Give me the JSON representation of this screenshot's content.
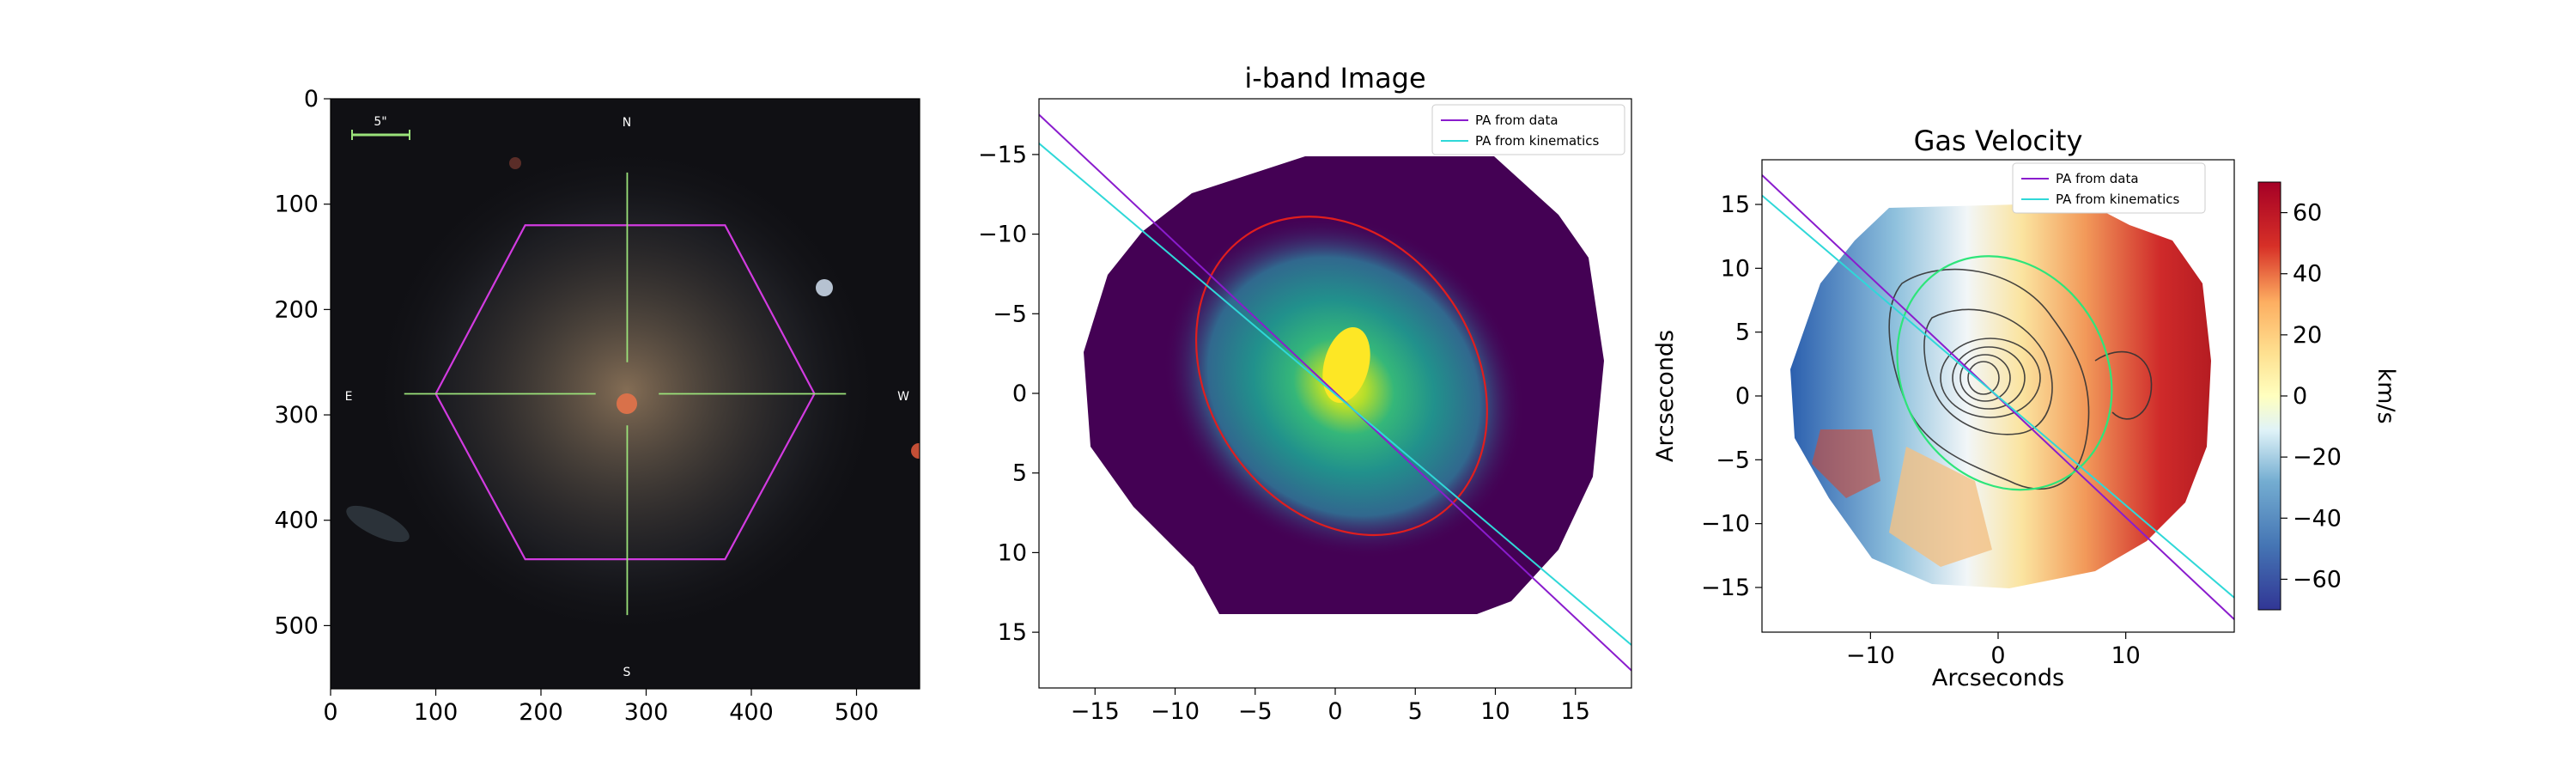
{
  "chart_data": [
    {
      "type": "image",
      "panel": "optical-image",
      "xlim": [
        0,
        560
      ],
      "ylim": [
        0,
        560
      ],
      "y_inverted": true,
      "xticks": [
        0,
        100,
        200,
        300,
        400,
        500
      ],
      "yticks": [
        0,
        100,
        200,
        300,
        400,
        500
      ],
      "scale_bar_label": "5\"",
      "compass": {
        "north": "N",
        "south": "S",
        "east": "E",
        "west": "W"
      },
      "center": [
        282,
        280
      ],
      "hexagon_vertices": [
        [
          185,
          120
        ],
        [
          375,
          120
        ],
        [
          460,
          280
        ],
        [
          375,
          437
        ],
        [
          185,
          437
        ],
        [
          100,
          280
        ]
      ],
      "crosshair": {
        "vertical": [
          [
            282,
            70
          ],
          [
            282,
            490
          ]
        ],
        "horizontal": [
          [
            70,
            280
          ],
          [
            490,
            280
          ]
        ]
      },
      "colors": {
        "background": "#101014",
        "hexagon": "#d23be0",
        "crosshair": "#9be27a",
        "scale_bar": "#9be27a"
      }
    },
    {
      "type": "heatmap",
      "panel": "i-band",
      "title": "i-band Image",
      "xlim": [
        -18.5,
        18.5
      ],
      "ylim": [
        18.5,
        -18.5
      ],
      "xticks": [
        -15,
        -10,
        -5,
        0,
        5,
        10,
        15
      ],
      "yticks": [
        -15,
        -10,
        -5,
        0,
        5,
        10,
        15
      ],
      "peak": [
        0.8,
        -2.2
      ],
      "ellipse": {
        "center": [
          0.4,
          -1.1
        ],
        "semi_major": 10.6,
        "semi_minor": 8.3,
        "angle_deg": 56,
        "color": "#e01e1e"
      },
      "legend": [
        {
          "label": "PA from data",
          "color": "#8a1ccd"
        },
        {
          "label": "PA from kinematics",
          "color": "#2fd8d8"
        }
      ],
      "lines": [
        {
          "name": "PA from data",
          "points": [
            [
              -18.5,
              -17.5
            ],
            [
              18.5,
              17.4
            ]
          ]
        },
        {
          "name": "PA from kinematics",
          "points": [
            [
              -18.5,
              -15.7
            ],
            [
              18.5,
              15.8
            ]
          ]
        }
      ],
      "colormap": "viridis"
    },
    {
      "type": "heatmap",
      "panel": "gas-velocity",
      "title": "Gas Velocity",
      "xlabel": "Arcseconds",
      "ylabel": "Arcseconds",
      "xlim": [
        -18.5,
        18.5
      ],
      "ylim": [
        -18.5,
        18.5
      ],
      "xticks": [
        -10,
        0,
        10
      ],
      "yticks": [
        15,
        10,
        5,
        0,
        -5,
        -10,
        -15
      ],
      "colorbar_label": "km/s",
      "colorbar_range": [
        -70,
        70
      ],
      "colorbar_ticks": [
        60,
        40,
        20,
        0,
        -20,
        -40,
        -60
      ],
      "ellipse": {
        "center": [
          0.5,
          1.8
        ],
        "semi_major": 9.5,
        "semi_minor": 8.0,
        "angle_deg": 60,
        "color": "#2ee57a"
      },
      "legend": [
        {
          "label": "PA from data",
          "color": "#8a1ccd"
        },
        {
          "label": "PA from kinematics",
          "color": "#2fd8d8"
        }
      ],
      "lines": [
        {
          "name": "PA from data",
          "points": [
            [
              -18.5,
              17.3
            ],
            [
              18.5,
              -17.5
            ]
          ]
        },
        {
          "name": "PA from kinematics",
          "points": [
            [
              -18.5,
              15.7
            ],
            [
              18.5,
              -15.8
            ]
          ]
        }
      ],
      "colormap": "RdBu_r"
    }
  ]
}
